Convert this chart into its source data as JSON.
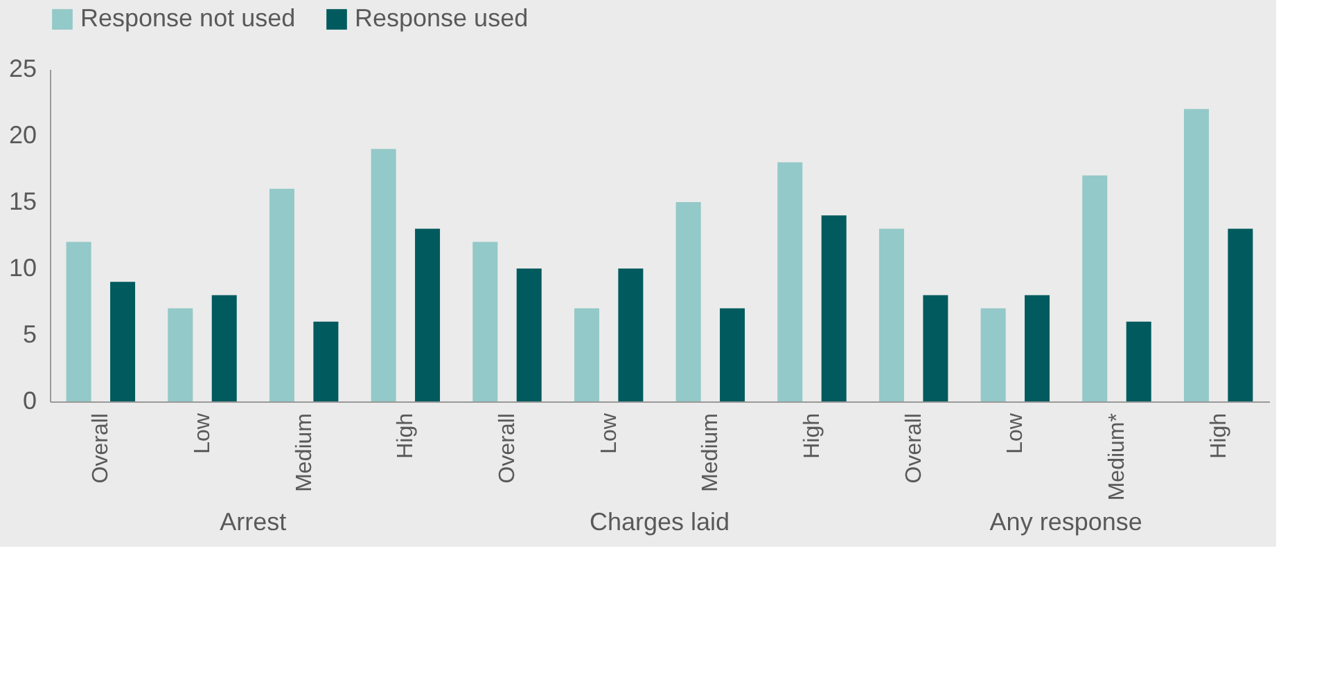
{
  "chart_data": {
    "type": "bar",
    "categories": [
      "Overall",
      "Low",
      "Medium",
      "High",
      "Overall",
      "Low",
      "Medium",
      "High",
      "Overall",
      "Low",
      "Medium*",
      "High"
    ],
    "series": [
      {
        "name": "Response not used",
        "color": "#93c9c8",
        "values": [
          12,
          7,
          16,
          19,
          12,
          7,
          15,
          18,
          13,
          7,
          17,
          22
        ]
      },
      {
        "name": "Response used",
        "color": "#005a5e",
        "values": [
          9,
          8,
          6,
          13,
          10,
          10,
          7,
          14,
          8,
          8,
          6,
          13
        ]
      }
    ],
    "ylim": [
      0,
      25
    ],
    "yticks": [
      0,
      5,
      10,
      15,
      20,
      25
    ],
    "grid": false,
    "legend": "top",
    "annotations": [
      "Arrest",
      "Charges laid",
      "Any response"
    ]
  }
}
